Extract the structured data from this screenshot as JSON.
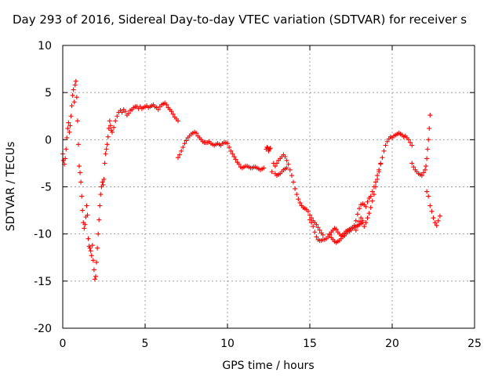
{
  "chart_data": {
    "type": "scatter",
    "title": "Day 293 of 2016, Sidereal Day-to-day VTEC variation (SDTVAR) for receiver s",
    "xlabel": "GPS time / hours",
    "ylabel": "SDTVAR / TECUs",
    "xlim": [
      0,
      25
    ],
    "ylim": [
      -20,
      10
    ],
    "x_ticks": [
      "0",
      "5",
      "10",
      "15",
      "20",
      "25"
    ],
    "y_ticks": [
      "10",
      "5",
      "0",
      "-5",
      "-10",
      "-15",
      "-20"
    ],
    "grid": true,
    "marker": "+",
    "color": "#ff0000",
    "series": [
      {
        "x": [
          0.0,
          0.05,
          0.1,
          0.15,
          0.2,
          0.25,
          0.3,
          0.35,
          0.4,
          0.45,
          0.5,
          0.55,
          0.6,
          0.65,
          0.7,
          0.75,
          0.8,
          0.85,
          0.9,
          0.95,
          1.0,
          1.05,
          1.1,
          1.15,
          1.2,
          1.25,
          1.3,
          1.35,
          1.4,
          1.45,
          1.5,
          1.55,
          1.6,
          1.65,
          1.7,
          1.75,
          1.8,
          1.85,
          1.9,
          1.95,
          2.0,
          2.05,
          2.1,
          2.15,
          2.2,
          2.25,
          2.3,
          2.35,
          2.4,
          2.45,
          2.5,
          2.55,
          2.6,
          2.65,
          2.7,
          2.75,
          2.8,
          2.85,
          2.9,
          2.95,
          3.0,
          3.1,
          3.2,
          3.3,
          3.4,
          3.5,
          3.6,
          3.7,
          3.8,
          3.9,
          4.0,
          4.1,
          4.2,
          4.3,
          4.4,
          4.5,
          4.6,
          4.7,
          4.8,
          4.9,
          5.0,
          5.1,
          5.2,
          5.3,
          5.4,
          5.5,
          5.6,
          5.7,
          5.8,
          5.9,
          6.0,
          6.1,
          6.2,
          6.3,
          6.4,
          6.5,
          6.6,
          6.7,
          6.8,
          6.9,
          7.0
        ],
        "y": [
          -1.5,
          -2.2,
          -2.6,
          -2.0,
          -1.0,
          0.2,
          1.2,
          1.8,
          0.8,
          1.5,
          2.5,
          3.6,
          4.7,
          5.3,
          4.0,
          5.8,
          6.2,
          4.5,
          2.0,
          -0.5,
          -2.8,
          -3.5,
          -4.5,
          -6.0,
          -7.5,
          -8.8,
          -9.4,
          -9.0,
          -8.2,
          -7.0,
          -8.0,
          -10.5,
          -11.3,
          -11.5,
          -11.8,
          -12.3,
          -11.2,
          -12.8,
          -13.8,
          -14.8,
          -14.5,
          -13.0,
          -11.5,
          -10.0,
          -8.5,
          -7.0,
          -5.8,
          -5.0,
          -4.5,
          -4.8,
          -4.2,
          -2.5,
          -1.5,
          -1.0,
          -0.5,
          0.3,
          1.2,
          2.0,
          1.5,
          1.0,
          0.8,
          1.3,
          2.0,
          2.5,
          2.9,
          3.1,
          2.9,
          3.2,
          3.0,
          2.6,
          2.8,
          3.1,
          3.2,
          3.4,
          3.5,
          3.5,
          3.3,
          3.5,
          3.3,
          3.4,
          3.5,
          3.6,
          3.4,
          3.5,
          3.6,
          3.7,
          3.5,
          3.4,
          3.2,
          3.5,
          3.7,
          3.8,
          3.9,
          3.7,
          3.4,
          3.2,
          3.0,
          2.7,
          2.4,
          2.2,
          2.0
        ]
      },
      {
        "x": [
          7.0,
          7.1,
          7.2,
          7.3,
          7.4,
          7.5,
          7.6,
          7.7,
          7.8,
          7.9,
          8.0,
          8.1,
          8.2,
          8.3,
          8.4,
          8.5,
          8.6,
          8.7,
          8.8,
          8.9,
          9.0,
          9.1,
          9.2,
          9.3,
          9.4,
          9.5,
          9.6,
          9.7,
          9.8,
          9.9,
          10.0,
          10.1,
          10.2,
          10.3,
          10.4,
          10.5,
          10.6,
          10.7,
          10.8,
          10.9,
          11.0,
          11.1,
          11.2,
          11.3,
          11.4,
          11.5,
          11.6,
          11.7,
          11.8,
          11.9,
          12.0,
          12.1,
          12.2
        ],
        "y": [
          -1.9,
          -1.6,
          -1.2,
          -0.8,
          -0.4,
          -0.1,
          0.2,
          0.4,
          0.6,
          0.7,
          0.8,
          0.7,
          0.4,
          0.2,
          0.0,
          -0.2,
          -0.3,
          -0.3,
          -0.3,
          -0.2,
          -0.4,
          -0.5,
          -0.6,
          -0.5,
          -0.4,
          -0.5,
          -0.6,
          -0.4,
          -0.3,
          -0.3,
          -0.4,
          -0.8,
          -1.2,
          -1.5,
          -1.8,
          -2.1,
          -2.4,
          -2.6,
          -2.9,
          -3.0,
          -2.9,
          -2.8,
          -2.8,
          -2.9,
          -3.0,
          -3.0,
          -2.9,
          -2.9,
          -3.0,
          -3.1,
          -3.2,
          -3.1,
          -3.0
        ]
      },
      {
        "x": [
          12.35,
          12.4,
          12.45,
          12.5,
          12.55,
          12.6,
          12.7
        ],
        "y": [
          -1.0,
          -0.8,
          -0.9,
          -1.2,
          -1.0,
          -0.9,
          -3.4
        ]
      },
      {
        "x": [
          12.8,
          12.9,
          13.0,
          13.1,
          13.2,
          13.3,
          13.4,
          13.5,
          13.6,
          13.7,
          13.8,
          13.9,
          14.0,
          14.1,
          14.2,
          14.3,
          14.4,
          14.5,
          14.6,
          14.7,
          14.8,
          14.9,
          15.0,
          15.1,
          15.2,
          15.3,
          15.4,
          15.5,
          15.6,
          15.7,
          15.8
        ],
        "y": [
          -2.5,
          -2.8,
          -2.5,
          -2.2,
          -2.0,
          -1.8,
          -1.6,
          -1.8,
          -2.2,
          -2.6,
          -3.2,
          -3.8,
          -4.5,
          -5.2,
          -5.8,
          -6.3,
          -6.7,
          -7.0,
          -7.2,
          -7.3,
          -7.4,
          -7.6,
          -8.0,
          -8.3,
          -8.6,
          -8.8,
          -9.0,
          -9.3,
          -9.6,
          -9.9,
          -10.1
        ]
      },
      {
        "x": [
          12.9,
          13.0,
          13.1,
          13.2,
          13.3,
          13.4,
          13.5,
          13.6
        ],
        "y": [
          -3.6,
          -3.8,
          -3.7,
          -3.6,
          -3.4,
          -3.2,
          -3.1,
          -3.0
        ]
      },
      {
        "x": [
          15.0,
          15.1,
          15.2,
          15.3,
          15.4,
          15.5,
          15.6,
          15.7,
          15.8,
          15.9,
          16.0,
          16.1,
          16.2,
          16.3,
          16.4,
          16.5,
          16.6,
          16.7,
          16.8,
          16.9,
          17.0,
          17.1,
          17.2,
          17.3,
          17.4,
          17.5,
          17.6,
          17.7,
          17.8,
          17.9,
          18.0,
          18.1,
          18.2
        ],
        "y": [
          -8.5,
          -8.8,
          -9.2,
          -9.8,
          -10.3,
          -10.6,
          -10.7,
          -10.7,
          -10.6,
          -10.6,
          -10.5,
          -10.3,
          -10.1,
          -10.4,
          -10.6,
          -10.8,
          -10.9,
          -10.8,
          -10.7,
          -10.5,
          -10.3,
          -10.2,
          -10.0,
          -9.8,
          -9.7,
          -9.6,
          -9.4,
          -9.3,
          -9.2,
          -9.1,
          -9.0,
          -8.9,
          -8.6
        ]
      },
      {
        "x": [
          16.2,
          16.3,
          16.4,
          16.5,
          16.6,
          16.7,
          16.8,
          16.9,
          17.0,
          17.1,
          17.2,
          17.3,
          17.4,
          17.5,
          17.6,
          17.7,
          17.8,
          17.9,
          18.0,
          18.1,
          18.2,
          18.3,
          18.4,
          18.5,
          18.6,
          18.7,
          18.8,
          18.9,
          19.0,
          19.1,
          19.2,
          19.3
        ],
        "y": [
          -10.0,
          -9.8,
          -9.6,
          -9.4,
          -9.5,
          -9.8,
          -10.0,
          -10.2,
          -10.1,
          -9.9,
          -9.7,
          -9.6,
          -9.5,
          -9.4,
          -9.3,
          -9.1,
          -8.6,
          -7.9,
          -7.3,
          -6.9,
          -6.8,
          -6.9,
          -7.1,
          -6.6,
          -6.2,
          -6.0,
          -5.5,
          -5.0,
          -4.5,
          -3.8,
          -3.2,
          -2.5
        ]
      },
      {
        "x": [
          17.8,
          17.9,
          18.0,
          18.1,
          18.2,
          18.3,
          18.4,
          18.5,
          18.6,
          18.7,
          18.8,
          18.9,
          19.0,
          19.1,
          19.2,
          19.3,
          19.4,
          19.5,
          19.6,
          19.7,
          19.8,
          19.9,
          20.0,
          20.1,
          20.2,
          20.3,
          20.4,
          20.5,
          20.6,
          20.7,
          20.8,
          20.9,
          21.0,
          21.1,
          21.2
        ],
        "y": [
          -9.6,
          -9.2,
          -8.7,
          -8.3,
          -8.8,
          -9.2,
          -8.8,
          -8.3,
          -7.8,
          -7.2,
          -6.5,
          -5.8,
          -5.0,
          -4.2,
          -3.4,
          -2.6,
          -1.9,
          -1.2,
          -0.6,
          -0.2,
          0.1,
          0.3,
          0.2,
          0.4,
          0.5,
          0.6,
          0.7,
          0.6,
          0.5,
          0.3,
          0.4,
          0.2,
          0.0,
          -0.3,
          -0.6
        ]
      },
      {
        "x": [
          21.2,
          21.3,
          21.4,
          21.5,
          21.6,
          21.7,
          21.8,
          21.9,
          22.0,
          22.05,
          22.1,
          22.15,
          22.2,
          22.25,
          22.3
        ],
        "y": [
          -2.5,
          -2.9,
          -3.2,
          -3.4,
          -3.6,
          -3.7,
          -3.8,
          -3.5,
          -3.2,
          -2.8,
          -2.0,
          -1.0,
          0.0,
          1.2,
          2.6
        ]
      },
      {
        "x": [
          22.1,
          22.2,
          22.3,
          22.4,
          22.5,
          22.6,
          22.7,
          22.8,
          22.9
        ],
        "y": [
          -5.5,
          -6.0,
          -7.0,
          -7.6,
          -8.3,
          -8.8,
          -9.1,
          -8.6,
          -8.1
        ]
      }
    ]
  }
}
